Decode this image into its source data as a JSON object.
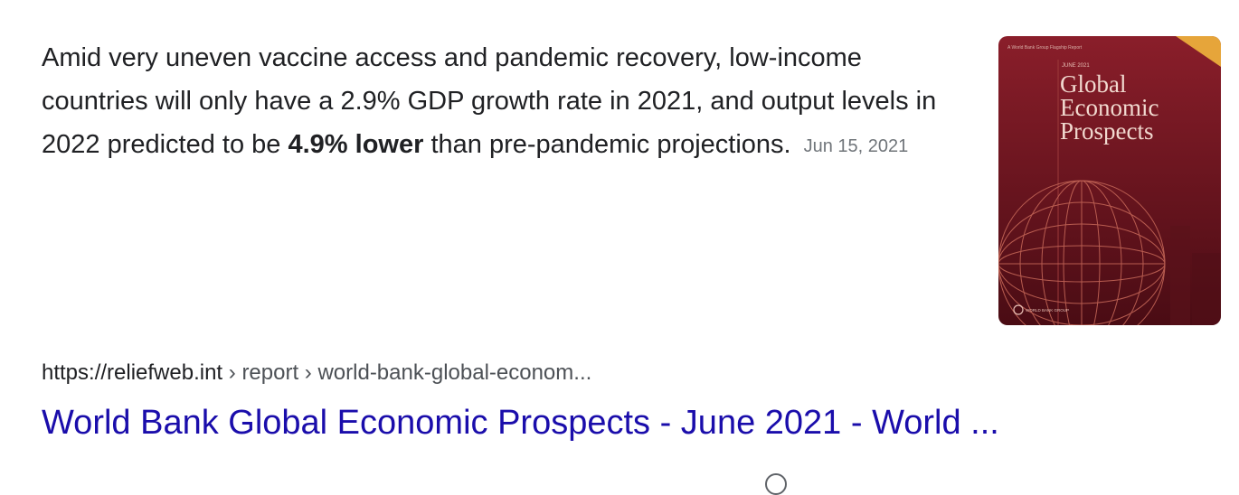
{
  "snippet": {
    "text_before": "Amid very uneven vaccine access and pandemic recovery, low-income countries will only have a 2.9% GDP growth rate in 2021, and output levels in 2022 predicted to be ",
    "bold": "4.9% lower",
    "text_after": " than pre-pandemic projections.",
    "date": "Jun 15, 2021"
  },
  "thumbnail": {
    "header_small": "A World Bank Group Flagship Report",
    "month": "JUNE 2021",
    "title_line1": "Global",
    "title_line2": "Economic",
    "title_line3": "Prospects",
    "footer": "WORLD BANK GROUP",
    "colors": {
      "background_top": "#8a1e2a",
      "background_bottom": "#4a0c14",
      "corner": "#e6a53a",
      "lines": "#c96a5a"
    }
  },
  "result": {
    "cite_domain": "https://reliefweb.int",
    "cite_path": " › report › world-bank-global-econom...",
    "title": "World Bank Global Economic Prospects - June 2021 - World ..."
  }
}
